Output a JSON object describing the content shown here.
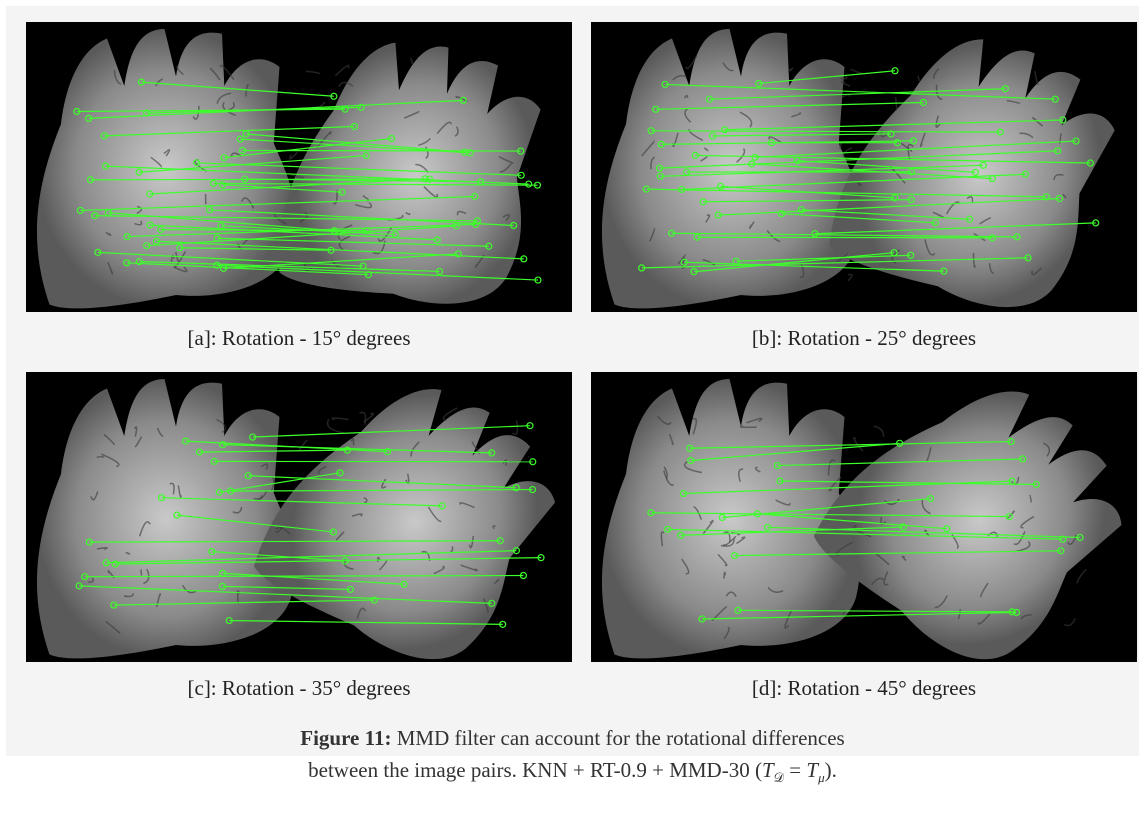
{
  "panels": [
    {
      "caption": "[a]: Rotation - 15° degrees"
    },
    {
      "caption": "[b]: Rotation - 25° degrees"
    },
    {
      "caption": "[c]: Rotation - 35° degrees"
    },
    {
      "caption": "[d]: Rotation - 45° degrees"
    }
  ],
  "figure_caption": {
    "label": "Figure 11:",
    "line1": "MMD filter can account for the rotational differences",
    "line2": "between the image pairs. KNN + RT-0.9 + MMD-30",
    "open": "(",
    "equation": {
      "left": "T",
      "left_sub": "𝒟",
      "op": "=",
      "right": "T",
      "right_sub": "μ"
    },
    "close": ")."
  }
}
